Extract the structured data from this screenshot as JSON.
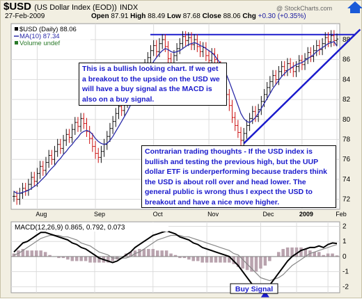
{
  "header": {
    "symbol": "$USD",
    "name": "(US Dollar Index (EOD))",
    "exchange": "INDX",
    "date": "27-Feb-2009",
    "open_label": "Open",
    "open": "87.91",
    "high_label": "High",
    "high": "88.49",
    "low_label": "Low",
    "low": "87.68",
    "close_label": "Close",
    "close": "88.06",
    "chg_label": "Chg",
    "chg": "+0.30 (+0.35%)",
    "watermark": "@ StockCharts.com"
  },
  "legend": {
    "price": "$USD (Daily) 88.06",
    "ma": "MA(10) 87.34",
    "volume": "Volume undef"
  },
  "annotations": {
    "bullish": "This is a bullish looking chart. If we get a breakout to the upside on the USD we will have a buy signal as the MACD is also on a buy signal.",
    "contrarian": "Contrarian trading thoughts - If the USD index is bullish and testing the previous high, but the UUP dollar ETF is underperforming because traders think the USD is about roll over and head lower. The general public is wrong thus I expect the USD to breakout and have a nice move higher.",
    "buy_signal": "Buy Signal"
  },
  "colors": {
    "up": "#111111",
    "down": "#cc1111",
    "ma": "#2a2aa8",
    "trendline": "#1a1acc",
    "macd": "#000000",
    "signal": "#888888",
    "histogram": "#b9a3ae",
    "annotation_text": "#1a1acc",
    "background": "#f2efe2"
  },
  "chart_data": [
    {
      "type": "line",
      "title": "$USD (Daily) 88.06",
      "xlabels": [
        "Aug",
        "Sep",
        "Oct",
        "Nov",
        "Dec",
        "2009",
        "Feb"
      ],
      "yticks": [
        72,
        74,
        76,
        78,
        80,
        82,
        84,
        86,
        88
      ],
      "ylim": [
        71,
        89.6
      ],
      "grid": true,
      "legend_position": "top-left",
      "series": [
        {
          "name": "$USD (Daily)",
          "values": [
            72.3,
            72.0,
            72.6,
            73.1,
            72.9,
            73.5,
            74.2,
            73.8,
            74.6,
            75.3,
            74.9,
            75.7,
            76.4,
            76.0,
            76.8,
            77.5,
            77.1,
            77.9,
            78.5,
            78.2,
            79.0,
            79.7,
            79.3,
            80.1,
            79.6,
            78.8,
            78.1,
            77.3,
            76.6,
            76.2,
            76.8,
            77.5,
            78.3,
            79.1,
            79.8,
            80.6,
            81.3,
            80.9,
            81.7,
            82.4,
            83.0,
            82.7,
            83.4,
            84.1,
            84.8,
            85.5,
            86.2,
            86.9,
            87.4,
            86.8,
            87.6,
            88.0,
            87.3,
            86.1,
            85.2,
            86.4,
            87.1,
            87.6,
            88.3,
            87.9,
            88.2,
            87.5,
            88.0,
            87.3,
            86.8,
            87.2,
            86.4,
            85.9,
            86.6,
            86.0,
            85.3,
            84.6,
            83.8,
            82.5,
            81.4,
            80.2,
            79.4,
            78.7,
            77.9,
            78.6,
            79.4,
            80.1,
            80.8,
            80.3,
            81.0,
            81.8,
            82.5,
            83.2,
            83.8,
            84.4,
            84.0,
            84.8,
            85.3,
            84.9,
            85.6,
            85.2,
            84.8,
            85.3,
            85.9,
            85.5,
            86.1,
            86.7,
            86.3,
            86.9,
            87.4,
            87.0,
            87.6,
            88.2,
            87.8,
            88.4,
            87.9,
            88.06
          ]
        },
        {
          "name": "MA(10)",
          "values": [
            72.8,
            72.6,
            72.6,
            72.7,
            72.8,
            72.9,
            73.1,
            73.3,
            73.5,
            73.8,
            74.1,
            74.4,
            74.8,
            75.1,
            75.4,
            75.8,
            76.1,
            76.5,
            76.8,
            77.2,
            77.5,
            77.9,
            78.2,
            78.6,
            78.8,
            78.9,
            78.8,
            78.5,
            78.1,
            77.8,
            77.6,
            77.5,
            77.6,
            77.9,
            78.3,
            78.8,
            79.3,
            79.8,
            80.3,
            80.8,
            81.4,
            81.9,
            82.4,
            82.9,
            83.5,
            84.0,
            84.6,
            85.2,
            85.8,
            86.2,
            86.6,
            86.9,
            87.1,
            87.0,
            86.8,
            86.7,
            86.8,
            86.9,
            87.1,
            87.3,
            87.5,
            87.6,
            87.7,
            87.6,
            87.4,
            87.3,
            87.1,
            86.9,
            86.7,
            86.4,
            86.0,
            85.6,
            85.1,
            84.5,
            83.8,
            83.0,
            82.2,
            81.4,
            80.6,
            80.1,
            79.8,
            79.7,
            79.9,
            80.2,
            80.6,
            81.1,
            81.6,
            82.1,
            82.6,
            83.1,
            83.5,
            83.9,
            84.3,
            84.6,
            84.9,
            85.1,
            85.3,
            85.5,
            85.6,
            85.7,
            85.9,
            86.1,
            86.3,
            86.5,
            86.8,
            87.0,
            87.2,
            87.4,
            87.6,
            87.7,
            87.8,
            87.34
          ]
        }
      ],
      "trendline": {
        "x": [
          79,
          113
        ],
        "y": [
          77.6,
          88.6
        ]
      },
      "reference_line": {
        "y": 88.5
      }
    },
    {
      "type": "line",
      "title": "MACD(12,26,9) 0.865, 0.792, 0.073",
      "xlabels": [
        "Aug",
        "Sep",
        "Oct",
        "Nov",
        "Dec",
        "2009",
        "Feb"
      ],
      "yticks": [
        -2,
        -1,
        0,
        1,
        2
      ],
      "ylim": [
        -2.4,
        2.3
      ],
      "series": [
        {
          "name": "MACD",
          "values": [
            0.3,
            0.6,
            0.9,
            1.0,
            1.2,
            1.4,
            1.6,
            1.6,
            1.5,
            1.4,
            1.3,
            1.2,
            1.1,
            0.9,
            0.8,
            0.6,
            0.5,
            0.3,
            0.1,
            -0.1,
            -0.2,
            -0.3,
            -0.4,
            -0.3,
            -0.1,
            0.1,
            0.3,
            0.6,
            0.8,
            1.0,
            1.2,
            1.4,
            1.5,
            1.6,
            1.7,
            1.6,
            1.5,
            1.3,
            1.2,
            1.1,
            0.9,
            0.8,
            0.6,
            0.5,
            0.4,
            0.3,
            0.2,
            0.1,
            0.0,
            -0.3,
            -0.6,
            -1.0,
            -1.4,
            -1.8,
            -2.1,
            -2.2,
            -2.1,
            -1.9,
            -1.5,
            -1.1,
            -0.7,
            -0.3,
            0.0,
            0.2,
            0.4,
            0.5,
            0.6,
            0.6,
            0.7,
            0.6,
            0.8,
            0.9,
            0.865
          ]
        },
        {
          "name": "Signal",
          "values": [
            0.1,
            0.2,
            0.4,
            0.6,
            0.8,
            1.0,
            1.2,
            1.3,
            1.4,
            1.4,
            1.4,
            1.3,
            1.3,
            1.2,
            1.1,
            0.9,
            0.8,
            0.7,
            0.5,
            0.3,
            0.2,
            0.1,
            -0.1,
            -0.1,
            -0.1,
            -0.1,
            0.0,
            0.2,
            0.3,
            0.5,
            0.7,
            0.9,
            1.1,
            1.2,
            1.3,
            1.4,
            1.4,
            1.4,
            1.3,
            1.3,
            1.2,
            1.1,
            1.0,
            0.9,
            0.8,
            0.7,
            0.6,
            0.5,
            0.4,
            0.2,
            0.1,
            -0.2,
            -0.5,
            -0.8,
            -1.1,
            -1.4,
            -1.5,
            -1.6,
            -1.5,
            -1.4,
            -1.2,
            -0.9,
            -0.6,
            -0.4,
            -0.2,
            0.0,
            0.2,
            0.3,
            0.4,
            0.5,
            0.6,
            0.7,
            0.792
          ]
        },
        {
          "name": "Histogram",
          "values": [
            0.2,
            0.4,
            0.5,
            0.4,
            0.4,
            0.4,
            0.4,
            0.3,
            0.1,
            0.0,
            -0.1,
            -0.1,
            -0.2,
            -0.3,
            -0.3,
            -0.3,
            -0.3,
            -0.4,
            -0.4,
            -0.4,
            -0.4,
            -0.4,
            -0.3,
            -0.2,
            0.0,
            0.2,
            0.3,
            0.4,
            0.5,
            0.5,
            0.5,
            0.5,
            0.4,
            0.4,
            0.4,
            0.2,
            0.1,
            -0.1,
            -0.1,
            -0.2,
            -0.3,
            -0.3,
            -0.4,
            -0.4,
            -0.4,
            -0.4,
            -0.4,
            -0.4,
            -0.4,
            -0.5,
            -0.7,
            -0.8,
            -0.9,
            -1.0,
            -1.0,
            -0.8,
            -0.6,
            -0.3,
            0.0,
            0.3,
            0.5,
            0.6,
            0.6,
            0.6,
            0.6,
            0.5,
            0.4,
            0.3,
            0.3,
            0.1,
            0.2,
            0.2,
            0.073
          ]
        }
      ],
      "buy_signal_index": 56
    }
  ]
}
